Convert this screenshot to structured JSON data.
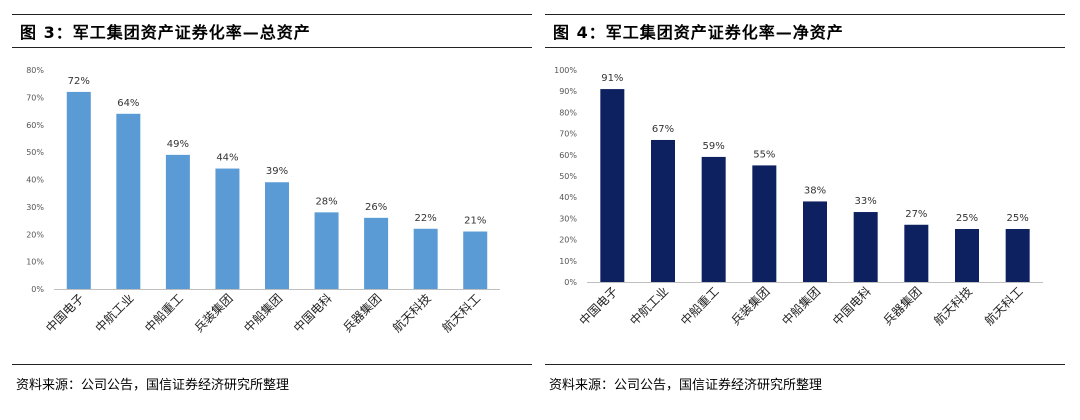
{
  "left": {
    "title": "图 3：军工集团资产证券化率—总资产",
    "source": "资料来源：公司公告，国信证券经济研究所整理"
  },
  "right": {
    "title": "图 4：军工集团资产证券化率—净资产",
    "source": "资料来源：公司公告，国信证券经济研究所整理"
  },
  "chart_data": [
    {
      "type": "bar",
      "title": "",
      "xlabel": "",
      "ylabel": "",
      "ylim": [
        0,
        80
      ],
      "yticks": [
        "0%",
        "10%",
        "20%",
        "30%",
        "40%",
        "50%",
        "60%",
        "70%",
        "80%"
      ],
      "categories": [
        "中国电子",
        "中航工业",
        "中船重工",
        "兵装集团",
        "中船集团",
        "中国电科",
        "兵器集团",
        "航天科技",
        "航天科工"
      ],
      "values": [
        72,
        64,
        49,
        44,
        39,
        28,
        26,
        22,
        21
      ],
      "data_labels": [
        "72%",
        "64%",
        "49%",
        "44%",
        "39%",
        "28%",
        "26%",
        "22%",
        "21%"
      ],
      "color": "#5b9bd5",
      "grid": false,
      "legend": "none"
    },
    {
      "type": "bar",
      "title": "",
      "xlabel": "",
      "ylabel": "",
      "ylim": [
        0,
        100
      ],
      "yticks": [
        "0%",
        "10%",
        "20%",
        "30%",
        "40%",
        "50%",
        "60%",
        "70%",
        "80%",
        "90%",
        "100%"
      ],
      "categories": [
        "中国电子",
        "中航工业",
        "中船重工",
        "兵装集团",
        "中船集团",
        "中国电科",
        "兵器集团",
        "航天科技",
        "航天科工"
      ],
      "values": [
        91,
        67,
        59,
        55,
        38,
        33,
        27,
        25,
        25
      ],
      "data_labels": [
        "91%",
        "67%",
        "59%",
        "55%",
        "38%",
        "33%",
        "27%",
        "25%",
        "25%"
      ],
      "color": "#0d2060",
      "grid": false,
      "legend": "none"
    }
  ]
}
